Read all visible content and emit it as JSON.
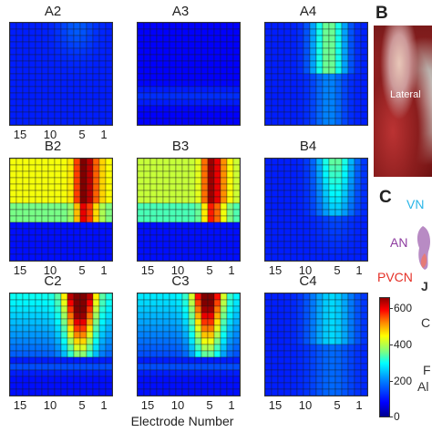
{
  "figure": {
    "xlabel": "Electrode Number",
    "x_ticks": [
      "15",
      "10",
      "5",
      "1"
    ],
    "panel_letters": {
      "B": "B",
      "C": "C"
    },
    "photo_label": "Lateral",
    "anatomy_labels": {
      "vn": "VN",
      "an": "AN",
      "pvcn": "PVCN"
    },
    "colorbar_ticks": [
      "600",
      "400",
      "200",
      "0"
    ],
    "side_text": {
      "c": "C",
      "r": "F",
      "al": "Al",
      "j": "J"
    },
    "colors": {
      "vn": "#29b6e8",
      "an": "#8e3ca0",
      "pvcn": "#e53027"
    }
  },
  "chart_data": [
    {
      "type": "heatmap",
      "title": "A2",
      "xlabel": "",
      "x_ticks": [
        "15",
        "10",
        "5",
        "1"
      ],
      "vmin": 0,
      "vmax": 650,
      "pattern": "A2"
    },
    {
      "type": "heatmap",
      "title": "A3",
      "xlabel": "",
      "x_ticks": [],
      "vmin": 0,
      "vmax": 650,
      "pattern": "A3"
    },
    {
      "type": "heatmap",
      "title": "A4",
      "xlabel": "",
      "x_ticks": [],
      "vmin": 0,
      "vmax": 650,
      "pattern": "A4"
    },
    {
      "type": "heatmap",
      "title": "B2",
      "xlabel": "",
      "x_ticks": [
        "15",
        "10",
        "5",
        "1"
      ],
      "vmin": 0,
      "vmax": 650,
      "pattern": "B2"
    },
    {
      "type": "heatmap",
      "title": "B3",
      "xlabel": "",
      "x_ticks": [
        "15",
        "10",
        "5",
        "1"
      ],
      "vmin": 0,
      "vmax": 650,
      "pattern": "B3"
    },
    {
      "type": "heatmap",
      "title": "B4",
      "xlabel": "",
      "x_ticks": [
        "15",
        "10",
        "5",
        "1"
      ],
      "vmin": 0,
      "vmax": 650,
      "pattern": "B4"
    },
    {
      "type": "heatmap",
      "title": "C2",
      "xlabel": "",
      "x_ticks": [
        "15",
        "10",
        "5",
        "1"
      ],
      "vmin": 0,
      "vmax": 650,
      "pattern": "C2"
    },
    {
      "type": "heatmap",
      "title": "C3",
      "xlabel": "",
      "x_ticks": [
        "15",
        "10",
        "5",
        "1"
      ],
      "vmin": 0,
      "vmax": 650,
      "pattern": "C3"
    },
    {
      "type": "heatmap",
      "title": "C4",
      "xlabel": "",
      "x_ticks": [
        "15",
        "10",
        "5",
        "1"
      ],
      "vmin": 0,
      "vmax": 650,
      "pattern": "C4"
    }
  ]
}
